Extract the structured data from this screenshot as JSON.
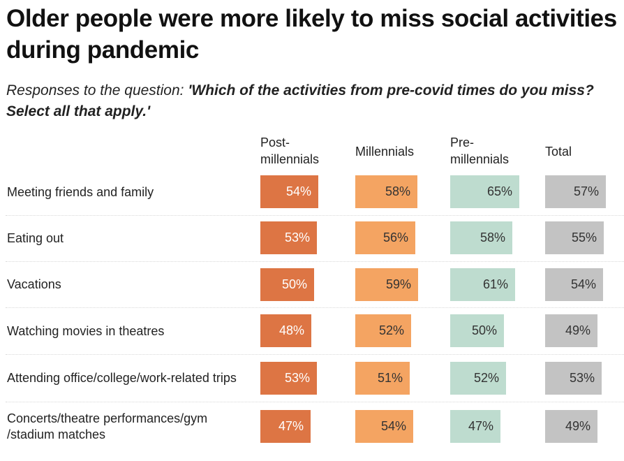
{
  "title": "Older people were more likely to miss social activities during pandemic",
  "subtitle_prefix": "Responses to the question: ",
  "subtitle_question": "'Which of the activities from pre-covid times do you miss? Select all that apply.'",
  "chart_data": {
    "type": "table",
    "title": "Older people were more likely to miss social activities during pandemic",
    "subtitle": "Responses to the question: 'Which of the activities from pre-covid times do you miss? Select all that apply.'",
    "columns": [
      "Post-millennials",
      "Millennials",
      "Pre-millennials",
      "Total"
    ],
    "column_headers": [
      {
        "line1": "Post-",
        "line2": "millennials"
      },
      {
        "line1": "Millennials",
        "line2": ""
      },
      {
        "line1": "Pre-",
        "line2": "millennials"
      },
      {
        "line1": "Total",
        "line2": ""
      }
    ],
    "column_colors": [
      "#dd7544",
      "#f4a462",
      "#bedccf",
      "#c3c3c3"
    ],
    "unit": "%",
    "rows": [
      {
        "label": "Meeting friends and family",
        "values": [
          54,
          58,
          65,
          57
        ],
        "display": [
          "54%",
          "58%",
          "65%",
          "57%"
        ]
      },
      {
        "label": "Eating out",
        "values": [
          53,
          56,
          58,
          55
        ],
        "display": [
          "53%",
          "56%",
          "58%",
          "55%"
        ]
      },
      {
        "label": "Vacations",
        "values": [
          50,
          59,
          61,
          54
        ],
        "display": [
          "50%",
          "59%",
          "61%",
          "54%"
        ]
      },
      {
        "label": "Watching movies in theatres",
        "values": [
          48,
          52,
          50,
          49
        ],
        "display": [
          "48%",
          "52%",
          "50%",
          "49%"
        ]
      },
      {
        "label": "Attending office/college/work-related trips",
        "values": [
          53,
          51,
          52,
          53
        ],
        "display": [
          "53%",
          "51%",
          "52%",
          "53%"
        ]
      },
      {
        "label": "Concerts/theatre performances/gym /stadium matches",
        "values": [
          47,
          54,
          47,
          49
        ],
        "display": [
          "47%",
          "54%",
          "47%",
          "49%"
        ]
      }
    ]
  }
}
